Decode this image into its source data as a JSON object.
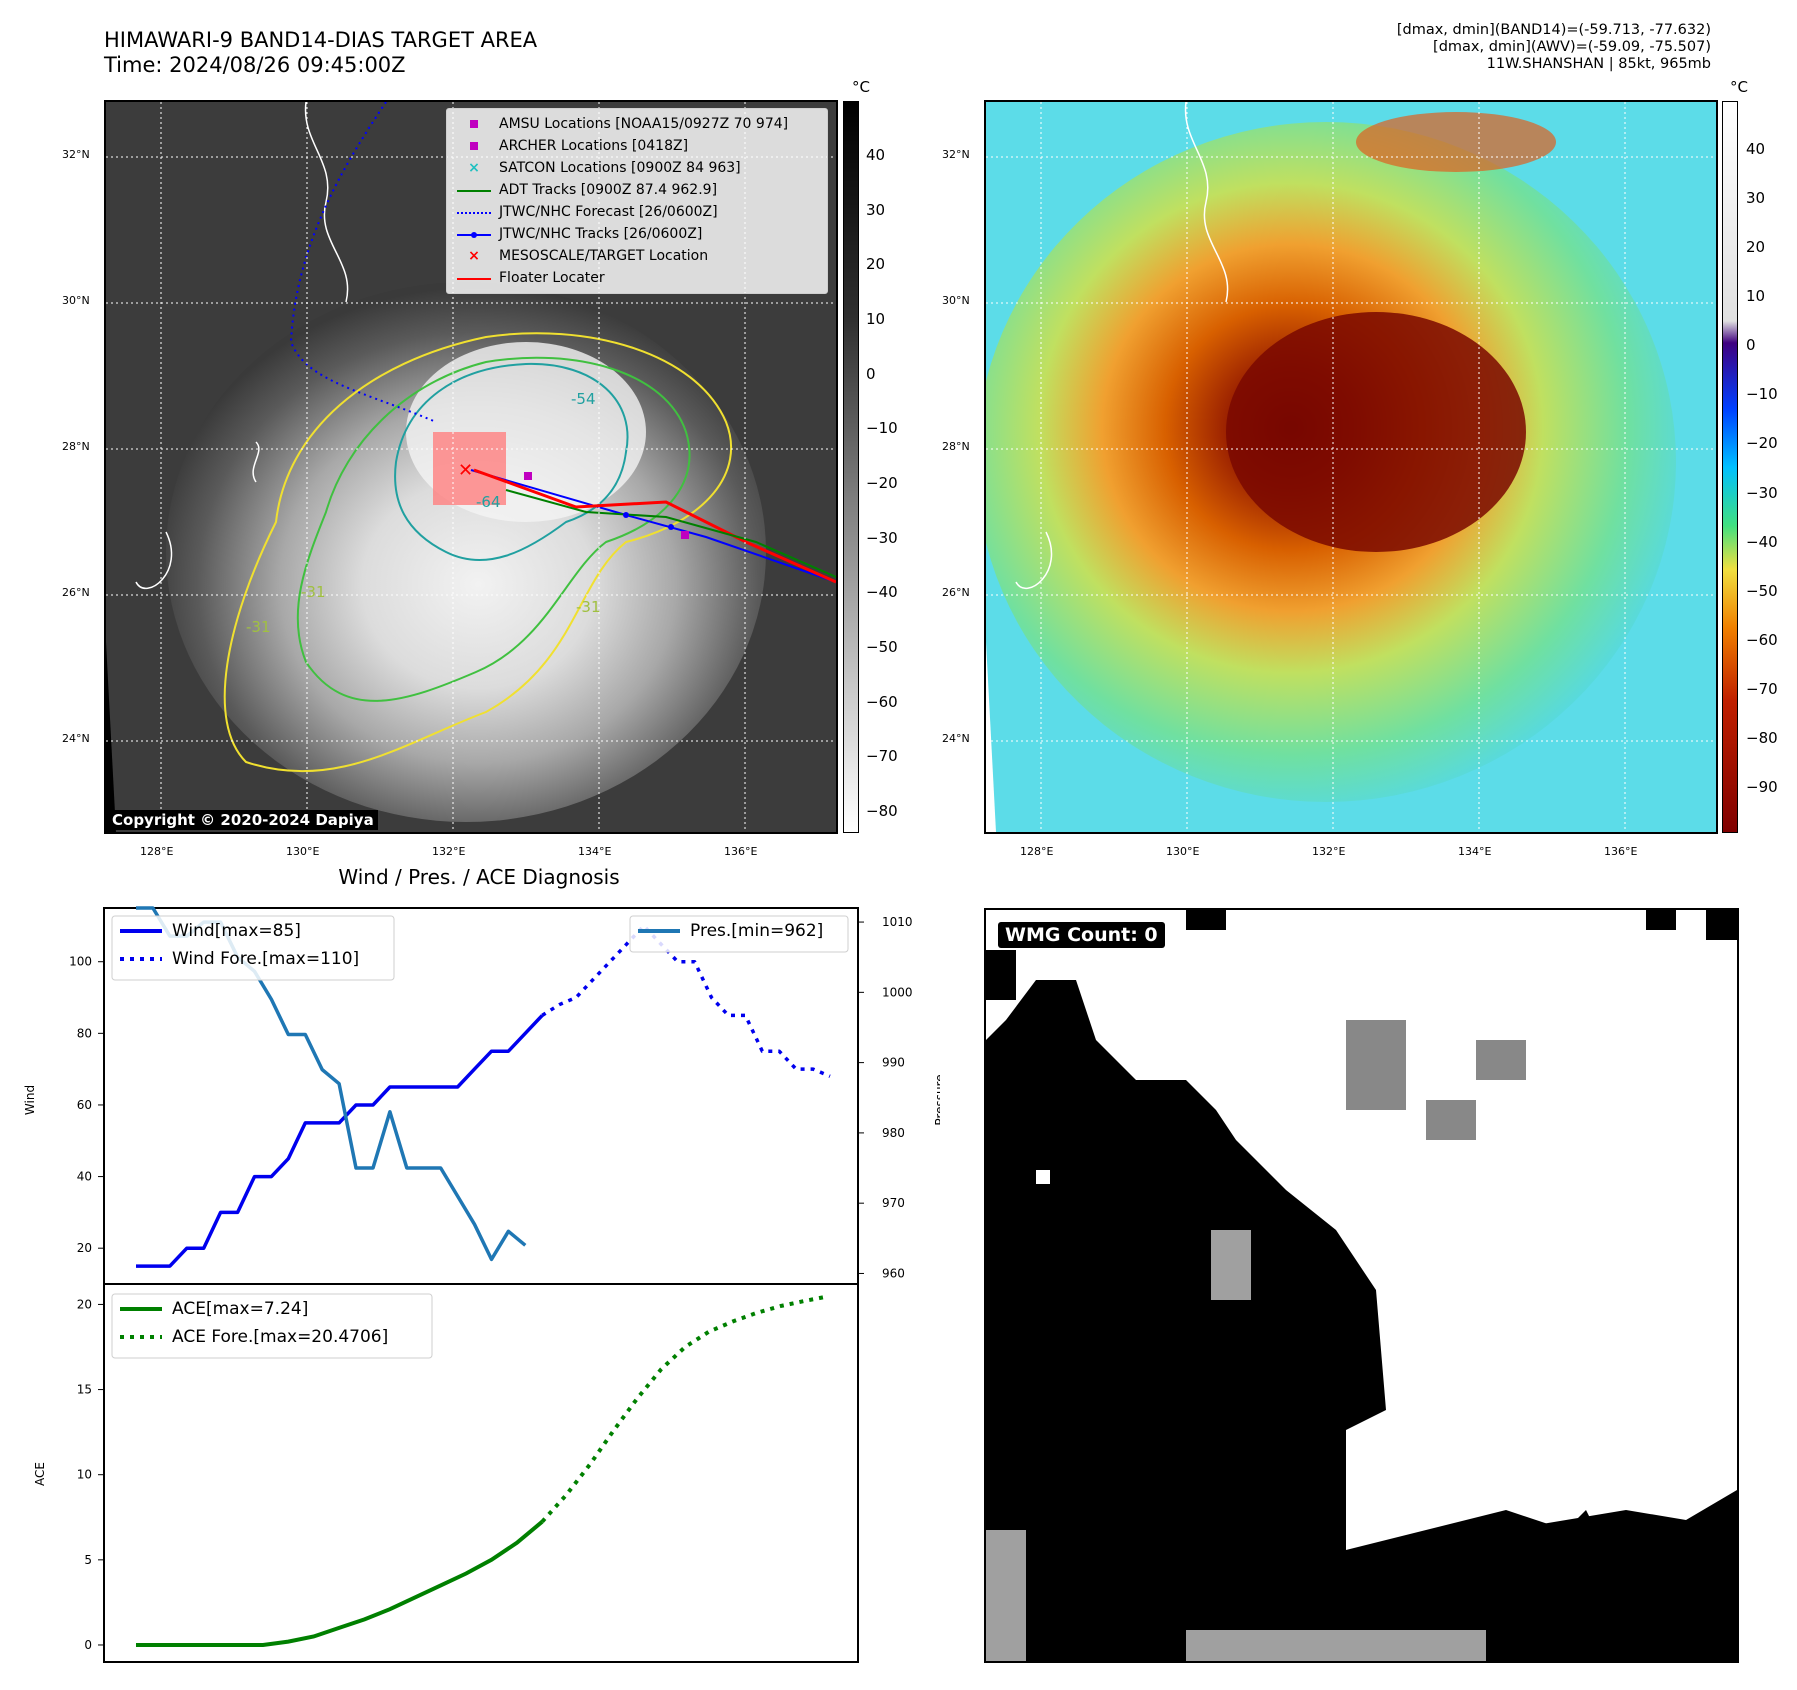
{
  "header": {
    "title_line1": "HIMAWARI-9 BAND14-DIAS TARGET AREA",
    "title_line2": "Time: 2024/08/26 09:45:00Z",
    "info_line1": "[dmax, dmin](BAND14)=(-59.713, -77.632)",
    "info_line2": "[dmax, dmin](AWV)=(-59.09, -75.507)",
    "info_line3": "11W.SHANSHAN | 85kt, 965mb"
  },
  "map": {
    "lat_labels": [
      "32°N",
      "30°N",
      "28°N",
      "26°N",
      "24°N"
    ],
    "lon_labels": [
      "128°E",
      "130°E",
      "132°E",
      "134°E",
      "136°E"
    ],
    "copyright": "Copyright © 2020-2024 Dapiya",
    "contour_labels": [
      "-54",
      "-64",
      "-31",
      "-31",
      "-31"
    ],
    "legend": [
      {
        "label": "AMSU Locations [NOAA15/0927Z 70 974]",
        "color": "#c000c0"
      },
      {
        "label": "ARCHER Locations [0418Z]",
        "color": "#c000c0"
      },
      {
        "label": "SATCON Locations [0900Z 84 963]",
        "color": "#20c0c0"
      },
      {
        "label": "ADT Tracks [0900Z 87.4 962.9]",
        "color": "#008000"
      },
      {
        "label": "JTWC/NHC Forecast [26/0600Z]",
        "color": "#0000ff"
      },
      {
        "label": "JTWC/NHC Tracks [26/0600Z]",
        "color": "#0000ff"
      },
      {
        "label": "MESOSCALE/TARGET Location",
        "color": "#ff0000"
      },
      {
        "label": "Floater Locater",
        "color": "#ff0000"
      }
    ]
  },
  "colorbar_left": {
    "unit": "°C",
    "ticks": [
      "40",
      "30",
      "20",
      "10",
      "0",
      "−10",
      "−20",
      "−30",
      "−40",
      "−50",
      "−60",
      "−70",
      "−80"
    ]
  },
  "colorbar_right": {
    "unit": "°C",
    "ticks": [
      "40",
      "30",
      "20",
      "10",
      "0",
      "−10",
      "−20",
      "−30",
      "−40",
      "−50",
      "−60",
      "−70",
      "−80",
      "−90"
    ]
  },
  "wmg": {
    "label": "WMG Count: 0"
  },
  "chart_data": [
    {
      "type": "line",
      "title": "Wind / Pres. / ACE Diagnosis",
      "ylabel": "Wind",
      "ylabel_right": "Pressure",
      "ylim": [
        10,
        115
      ],
      "ylim_right": [
        958.5,
        1012
      ],
      "yticks": [
        20,
        40,
        60,
        80,
        100
      ],
      "yticks_right": [
        960,
        970,
        980,
        990,
        1000,
        1010
      ],
      "legend_left": [
        "Wind[max=85]",
        "Wind Fore.[max=110]"
      ],
      "legend_right": [
        "Pres.[min=962]"
      ],
      "series": [
        {
          "name": "Wind[max=85]",
          "color": "#0000ee",
          "style": "solid",
          "values": [
            15,
            15,
            15,
            20,
            20,
            30,
            30,
            40,
            40,
            45,
            55,
            55,
            55,
            60,
            60,
            65,
            65,
            65,
            65,
            65,
            70,
            75,
            75,
            80,
            85
          ]
        },
        {
          "name": "Wind Fore.[max=110]",
          "color": "#0000ee",
          "style": "dotted",
          "values": [
            85,
            88,
            90,
            95,
            100,
            105,
            110,
            105,
            100,
            100,
            90,
            85,
            85,
            75,
            75,
            70,
            70,
            68
          ]
        },
        {
          "name": "Pres.[min=962]",
          "color": "#1f77b4",
          "style": "solid",
          "axis": "right",
          "values": [
            1012,
            1012,
            1008,
            1008,
            1010,
            1010,
            1005,
            1003,
            999,
            994,
            994,
            989,
            987,
            975,
            975,
            983,
            975,
            975,
            975,
            971,
            967,
            962,
            966,
            964
          ]
        }
      ]
    },
    {
      "type": "line",
      "ylabel": "ACE",
      "ylim": [
        -1,
        21.2
      ],
      "yticks": [
        0,
        5,
        10,
        15,
        20
      ],
      "legend": [
        "ACE[max=7.24]",
        "ACE Fore.[max=20.4706]"
      ],
      "series": [
        {
          "name": "ACE[max=7.24]",
          "color": "#008000",
          "style": "solid",
          "values": [
            0,
            0,
            0,
            0,
            0,
            0,
            0.2,
            0.5,
            1.0,
            1.5,
            2.1,
            2.8,
            3.5,
            4.2,
            5.0,
            6.0,
            7.24
          ]
        },
        {
          "name": "ACE Fore.[max=20.4706]",
          "color": "#008000",
          "style": "dotted",
          "values": [
            7.24,
            8.8,
            10.6,
            12.6,
            14.5,
            16.2,
            17.5,
            18.4,
            19.0,
            19.5,
            19.9,
            20.2,
            20.4706
          ]
        }
      ]
    }
  ]
}
